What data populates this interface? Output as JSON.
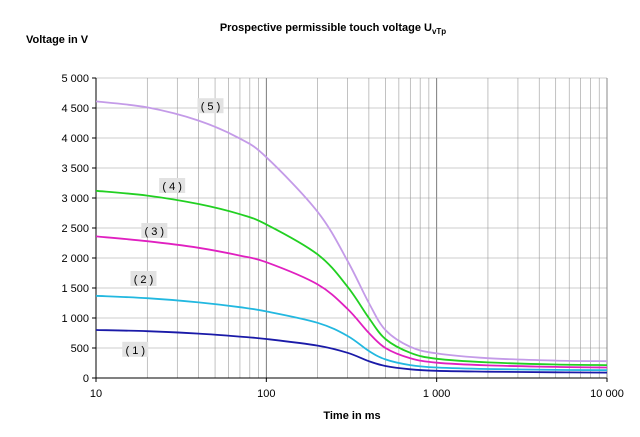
{
  "chart_data": {
    "type": "line",
    "title_main": "Prospective permissible touch voltage U",
    "title_subscript": "vTp",
    "xlabel": "Time in ms",
    "ylabel": "Voltage in V",
    "x_scale": "log",
    "xlim": [
      10,
      10000
    ],
    "ylim": [
      0,
      5000
    ],
    "x_ticks": [
      {
        "value": 10,
        "label": "10"
      },
      {
        "value": 100,
        "label": "100"
      },
      {
        "value": 1000,
        "label": "1 000"
      },
      {
        "value": 10000,
        "label": "10 000"
      }
    ],
    "y_ticks": [
      {
        "value": 0,
        "label": "0"
      },
      {
        "value": 500,
        "label": "500"
      },
      {
        "value": 1000,
        "label": "1 000"
      },
      {
        "value": 1500,
        "label": "1 500"
      },
      {
        "value": 2000,
        "label": "2 000"
      },
      {
        "value": 2500,
        "label": "2 500"
      },
      {
        "value": 3000,
        "label": "3 000"
      },
      {
        "value": 3500,
        "label": "3 500"
      },
      {
        "value": 4000,
        "label": "4 000"
      },
      {
        "value": 4500,
        "label": "4 500"
      },
      {
        "value": 5000,
        "label": "5 000"
      }
    ],
    "grid": true,
    "series": [
      {
        "tag": "( 1 )",
        "tag_at": [
          17,
          470
        ],
        "color": "#1a1aa8",
        "points": [
          [
            10,
            800
          ],
          [
            20,
            780
          ],
          [
            40,
            740
          ],
          [
            70,
            690
          ],
          [
            100,
            650
          ],
          [
            200,
            540
          ],
          [
            300,
            420
          ],
          [
            400,
            280
          ],
          [
            500,
            200
          ],
          [
            700,
            145
          ],
          [
            1000,
            120
          ],
          [
            2000,
            105
          ],
          [
            5000,
            95
          ],
          [
            10000,
            90
          ]
        ]
      },
      {
        "tag": "( 2 )",
        "tag_at": [
          19,
          1650
        ],
        "color": "#22b8e0",
        "points": [
          [
            10,
            1370
          ],
          [
            20,
            1330
          ],
          [
            40,
            1260
          ],
          [
            70,
            1180
          ],
          [
            100,
            1110
          ],
          [
            200,
            920
          ],
          [
            300,
            700
          ],
          [
            400,
            450
          ],
          [
            500,
            310
          ],
          [
            700,
            215
          ],
          [
            1000,
            175
          ],
          [
            2000,
            150
          ],
          [
            5000,
            135
          ],
          [
            10000,
            130
          ]
        ]
      },
      {
        "tag": "( 3 )",
        "tag_at": [
          22,
          2450
        ],
        "color": "#e020c0",
        "points": [
          [
            10,
            2360
          ],
          [
            20,
            2280
          ],
          [
            40,
            2170
          ],
          [
            70,
            2040
          ],
          [
            100,
            1930
          ],
          [
            200,
            1560
          ],
          [
            300,
            1150
          ],
          [
            400,
            750
          ],
          [
            500,
            500
          ],
          [
            700,
            330
          ],
          [
            1000,
            255
          ],
          [
            2000,
            210
          ],
          [
            5000,
            185
          ],
          [
            10000,
            175
          ]
        ]
      },
      {
        "tag": "( 4 )",
        "tag_at": [
          28,
          3200
        ],
        "color": "#22d022",
        "points": [
          [
            10,
            3120
          ],
          [
            20,
            3040
          ],
          [
            40,
            2900
          ],
          [
            70,
            2730
          ],
          [
            100,
            2560
          ],
          [
            200,
            2060
          ],
          [
            300,
            1520
          ],
          [
            400,
            1000
          ],
          [
            500,
            650
          ],
          [
            700,
            420
          ],
          [
            1000,
            320
          ],
          [
            2000,
            260
          ],
          [
            5000,
            225
          ],
          [
            10000,
            215
          ]
        ]
      },
      {
        "tag": "( 5 )",
        "tag_at": [
          47,
          4530
        ],
        "color": "#c49be8",
        "points": [
          [
            10,
            4610
          ],
          [
            20,
            4510
          ],
          [
            40,
            4290
          ],
          [
            70,
            3990
          ],
          [
            100,
            3680
          ],
          [
            200,
            2770
          ],
          [
            300,
            1950
          ],
          [
            400,
            1250
          ],
          [
            500,
            800
          ],
          [
            700,
            520
          ],
          [
            1000,
            410
          ],
          [
            2000,
            330
          ],
          [
            5000,
            290
          ],
          [
            10000,
            280
          ]
        ]
      }
    ]
  }
}
